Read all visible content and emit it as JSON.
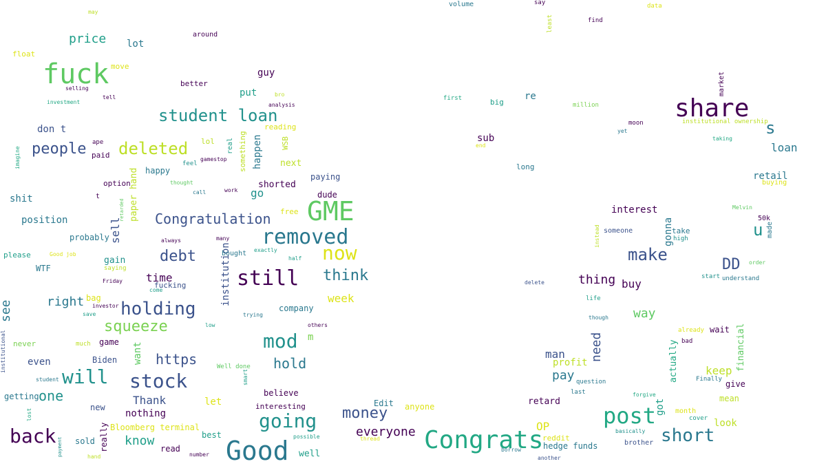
{
  "colors": {
    "c1": "#440154",
    "c2": "#3b528b",
    "c3": "#21918c",
    "c4": "#2a788e",
    "c5": "#22a884",
    "c6": "#5ec962",
    "c7": "#7ad151",
    "c8": "#bddf26",
    "c9": "#dde318",
    "c10": "#1f9e89"
  },
  "words": [
    {
      "text": "fuck",
      "color": "c6"
    },
    {
      "text": "GME",
      "color": "c6"
    },
    {
      "text": "Good",
      "color": "c4"
    },
    {
      "text": "Congrats",
      "color": "c5"
    },
    {
      "text": "share",
      "color": "c1"
    },
    {
      "text": "post",
      "color": "c5"
    },
    {
      "text": "removed",
      "color": "c4"
    },
    {
      "text": "student loan",
      "color": "c3"
    },
    {
      "text": "deleted",
      "color": "c8"
    },
    {
      "text": "still",
      "color": "c1"
    },
    {
      "text": "now",
      "color": "c9"
    },
    {
      "text": "will",
      "color": "c3"
    },
    {
      "text": "stock",
      "color": "c2"
    },
    {
      "text": "holding",
      "color": "c2"
    },
    {
      "text": "mod",
      "color": "c3"
    },
    {
      "text": "going",
      "color": "c3"
    },
    {
      "text": "back",
      "color": "c1"
    },
    {
      "text": "short",
      "color": "c4"
    },
    {
      "text": "make",
      "color": "c2"
    },
    {
      "text": "Congratulation",
      "color": "c2"
    },
    {
      "text": "people",
      "color": "c2"
    },
    {
      "text": "debt",
      "color": "c2"
    },
    {
      "text": "think",
      "color": "c4"
    },
    {
      "text": "squeeze",
      "color": "c7"
    },
    {
      "text": "money",
      "color": "c2"
    },
    {
      "text": "DD",
      "color": "c2"
    },
    {
      "text": "s",
      "color": "c4"
    },
    {
      "text": "u",
      "color": "c3"
    },
    {
      "text": "hold",
      "color": "c4"
    },
    {
      "text": "https",
      "color": "c2"
    },
    {
      "text": "price",
      "color": "c10"
    },
    {
      "text": "everyone",
      "color": "c1"
    },
    {
      "text": "pay",
      "color": "c4"
    },
    {
      "text": "one",
      "color": "c3"
    },
    {
      "text": "right",
      "color": "c4"
    },
    {
      "text": "see",
      "color": "c4"
    },
    {
      "text": "know",
      "color": "c10"
    },
    {
      "text": "Thank",
      "color": "c2"
    },
    {
      "text": "thing",
      "color": "c1"
    },
    {
      "text": "way",
      "color": "c6"
    },
    {
      "text": "week",
      "color": "c9"
    },
    {
      "text": "keep",
      "color": "c8"
    },
    {
      "text": "OP",
      "color": "c9"
    },
    {
      "text": "man",
      "color": "c2"
    },
    {
      "text": "need",
      "color": "c2"
    },
    {
      "text": "loan",
      "color": "c4"
    },
    {
      "text": "interest",
      "color": "c1"
    },
    {
      "text": "time",
      "color": "c1"
    },
    {
      "text": "position",
      "color": "c4"
    },
    {
      "text": "go",
      "color": "c3"
    },
    {
      "text": "sell",
      "color": "c2"
    },
    {
      "text": "buy",
      "color": "c1"
    },
    {
      "text": "shorted",
      "color": "c1"
    },
    {
      "text": "institution",
      "color": "c2"
    },
    {
      "text": "gain",
      "color": "c3"
    },
    {
      "text": "even",
      "color": "c2"
    },
    {
      "text": "shit",
      "color": "c4"
    },
    {
      "text": "lot",
      "color": "c4"
    },
    {
      "text": "don t",
      "color": "c2"
    },
    {
      "text": "guy",
      "color": "c1"
    },
    {
      "text": "put",
      "color": "c10"
    },
    {
      "text": "m",
      "color": "c7"
    },
    {
      "text": "nothing",
      "color": "c1"
    },
    {
      "text": "want",
      "color": "c6"
    },
    {
      "text": "profit",
      "color": "c8"
    },
    {
      "text": "retail",
      "color": "c4"
    },
    {
      "text": "happen",
      "color": "c4"
    },
    {
      "text": "retard",
      "color": "c1"
    },
    {
      "text": "sub",
      "color": "c1"
    },
    {
      "text": "gonna",
      "color": "c4"
    },
    {
      "text": "got",
      "color": "c10"
    },
    {
      "text": "let",
      "color": "c9"
    },
    {
      "text": "re",
      "color": "c4"
    },
    {
      "text": "paper hand",
      "color": "c8"
    },
    {
      "text": "financial",
      "color": "c6"
    },
    {
      "text": "actually",
      "color": "c5"
    },
    {
      "text": "look",
      "color": "c8"
    },
    {
      "text": "next",
      "color": "c8"
    },
    {
      "text": "probably",
      "color": "c4"
    },
    {
      "text": "Biden",
      "color": "c2"
    },
    {
      "text": "getting",
      "color": "c4"
    },
    {
      "text": "game",
      "color": "c1"
    },
    {
      "text": "anyone",
      "color": "c9"
    },
    {
      "text": "Edit",
      "color": "c4"
    },
    {
      "text": "hedge funds",
      "color": "c4"
    },
    {
      "text": "really",
      "color": "c1"
    },
    {
      "text": "sold",
      "color": "c4"
    },
    {
      "text": "read",
      "color": "c1"
    },
    {
      "text": "best",
      "color": "c10"
    },
    {
      "text": "well",
      "color": "c10"
    },
    {
      "text": "believe",
      "color": "c1"
    },
    {
      "text": "interesting",
      "color": "c1"
    },
    {
      "text": "company",
      "color": "c4"
    },
    {
      "text": "Bloomberg terminal",
      "color": "c9"
    },
    {
      "text": "new",
      "color": "c2"
    },
    {
      "text": "paying",
      "color": "c2"
    },
    {
      "text": "dude",
      "color": "c1"
    },
    {
      "text": "bag",
      "color": "c9"
    },
    {
      "text": "mean",
      "color": "c8"
    },
    {
      "text": "give",
      "color": "c1"
    },
    {
      "text": "wait",
      "color": "c1"
    },
    {
      "text": "never",
      "color": "c7"
    },
    {
      "text": "WTF",
      "color": "c4"
    },
    {
      "text": "please",
      "color": "c10"
    },
    {
      "text": "happy",
      "color": "c4"
    },
    {
      "text": "lol",
      "color": "c8"
    },
    {
      "text": "free",
      "color": "c9"
    },
    {
      "text": "better",
      "color": "c1"
    },
    {
      "text": "move",
      "color": "c9"
    },
    {
      "text": "float",
      "color": "c9"
    },
    {
      "text": "long",
      "color": "c4"
    },
    {
      "text": "big",
      "color": "c10"
    },
    {
      "text": "option",
      "color": "c1"
    },
    {
      "text": "reddit",
      "color": "c9"
    },
    {
      "text": "take",
      "color": "c4"
    },
    {
      "text": "reading",
      "color": "c9"
    },
    {
      "text": "WSB",
      "color": "c8"
    },
    {
      "text": "something",
      "color": "c8"
    },
    {
      "text": "real",
      "color": "c10"
    },
    {
      "text": "fucking",
      "color": "c2"
    },
    {
      "text": "50k",
      "color": "c1"
    },
    {
      "text": "around",
      "color": "c1"
    },
    {
      "text": "high",
      "color": "c3"
    },
    {
      "text": "made",
      "color": "c4"
    },
    {
      "text": "someone",
      "color": "c2"
    },
    {
      "text": "month",
      "color": "c9"
    },
    {
      "text": "buying",
      "color": "c9"
    },
    {
      "text": "brother",
      "color": "c2"
    },
    {
      "text": "bought",
      "color": "c4"
    },
    {
      "text": "t",
      "color": "c1"
    },
    {
      "text": "institutional ownership",
      "color": "c8"
    },
    {
      "text": "moon",
      "color": "c1"
    },
    {
      "text": "market",
      "color": "c1"
    },
    {
      "text": "Melvin",
      "color": "c6"
    },
    {
      "text": "already",
      "color": "c9"
    },
    {
      "text": "forgive",
      "color": "c5"
    },
    {
      "text": "Finally",
      "color": "c4"
    },
    {
      "text": "life",
      "color": "c10"
    },
    {
      "text": "start",
      "color": "c3"
    },
    {
      "text": "understand",
      "color": "c4"
    },
    {
      "text": "order",
      "color": "c6"
    },
    {
      "text": "cover",
      "color": "c10"
    },
    {
      "text": "basically",
      "color": "c3"
    },
    {
      "text": "bad",
      "color": "c1"
    },
    {
      "text": "million",
      "color": "c7"
    },
    {
      "text": "first",
      "color": "c5"
    },
    {
      "text": "volume",
      "color": "c4"
    },
    {
      "text": "say",
      "color": "c1"
    },
    {
      "text": "data",
      "color": "c9"
    },
    {
      "text": "find",
      "color": "c1"
    },
    {
      "text": "least",
      "color": "c8"
    },
    {
      "text": "taking",
      "color": "c5"
    },
    {
      "text": "yet",
      "color": "c4"
    },
    {
      "text": "end",
      "color": "c9"
    },
    {
      "text": "instead",
      "color": "c8"
    },
    {
      "text": "delete",
      "color": "c2"
    },
    {
      "text": "though",
      "color": "c4"
    },
    {
      "text": "question",
      "color": "c4"
    },
    {
      "text": "last",
      "color": "c4"
    },
    {
      "text": "borrow",
      "color": "c4"
    },
    {
      "text": "another",
      "color": "c2"
    },
    {
      "text": "thread",
      "color": "c9"
    },
    {
      "text": "possible",
      "color": "c10"
    },
    {
      "text": "number",
      "color": "c1"
    },
    {
      "text": "hand",
      "color": "c8"
    },
    {
      "text": "payment",
      "color": "c3"
    },
    {
      "text": "lost",
      "color": "c5"
    },
    {
      "text": "student",
      "color": "c4"
    },
    {
      "text": "institutional",
      "color": "c2"
    },
    {
      "text": "much",
      "color": "c8"
    },
    {
      "text": "save",
      "color": "c10"
    },
    {
      "text": "investor",
      "color": "c1"
    },
    {
      "text": "come",
      "color": "c10"
    },
    {
      "text": "Friday",
      "color": "c1"
    },
    {
      "text": "saying",
      "color": "c8"
    },
    {
      "text": "Good job",
      "color": "c9"
    },
    {
      "text": "always",
      "color": "c1"
    },
    {
      "text": "many",
      "color": "c1"
    },
    {
      "text": "exactly",
      "color": "c10"
    },
    {
      "text": "half",
      "color": "c10"
    },
    {
      "text": "low",
      "color": "c10"
    },
    {
      "text": "trying",
      "color": "c4"
    },
    {
      "text": "others",
      "color": "c1"
    },
    {
      "text": "Well done",
      "color": "c6"
    },
    {
      "text": "smart",
      "color": "c10"
    },
    {
      "text": "work",
      "color": "c1"
    },
    {
      "text": "call",
      "color": "c4"
    },
    {
      "text": "thought",
      "color": "c6"
    },
    {
      "text": "feel",
      "color": "c3"
    },
    {
      "text": "gamestop",
      "color": "c1"
    },
    {
      "text": "retarded",
      "color": "c6"
    },
    {
      "text": "paid",
      "color": "c1"
    },
    {
      "text": "ape",
      "color": "c1"
    },
    {
      "text": "imagine",
      "color": "c5"
    },
    {
      "text": "selling",
      "color": "c1"
    },
    {
      "text": "tell",
      "color": "c1"
    },
    {
      "text": "investment",
      "color": "c5"
    },
    {
      "text": "bro",
      "color": "c8"
    },
    {
      "text": "analysis",
      "color": "c1"
    },
    {
      "text": "may",
      "color": "c8"
    }
  ]
}
